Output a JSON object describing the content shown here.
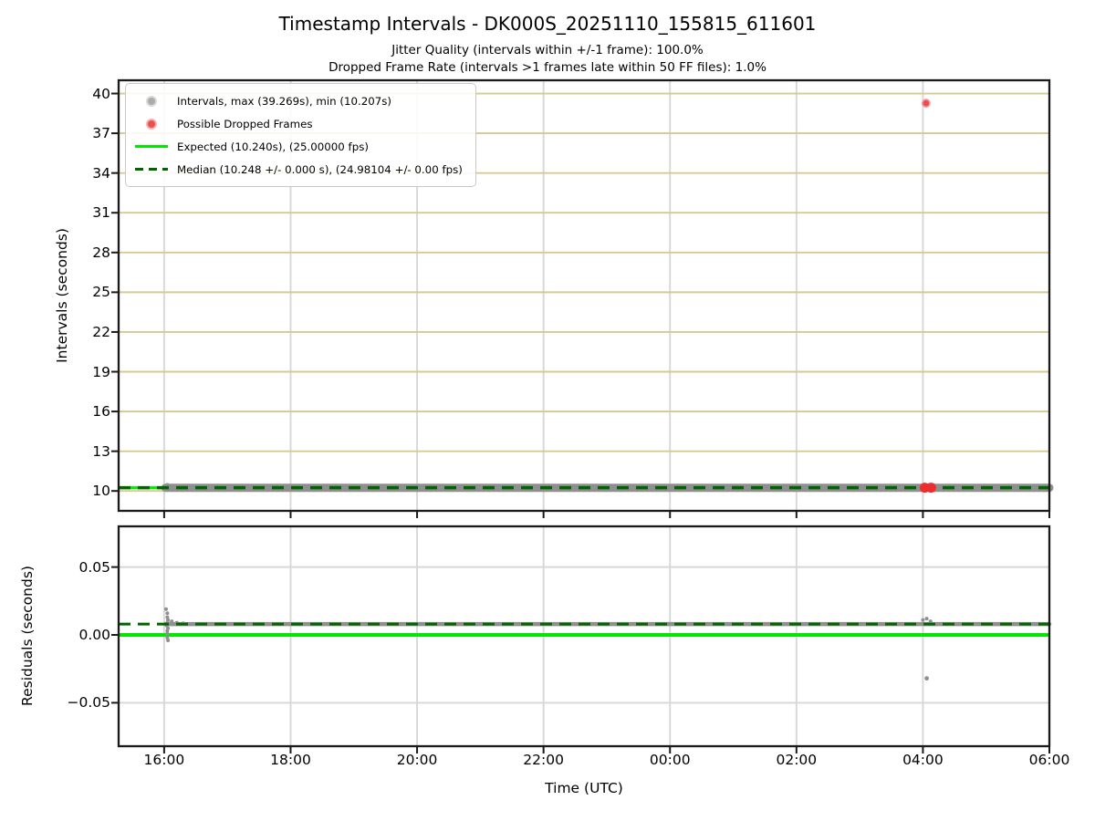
{
  "header": {
    "title": "Timestamp Intervals - DK000S_20251110_155815_611601",
    "subtitle1": "Jitter Quality (intervals within +/-1 frame): 100.0%",
    "subtitle2": "Dropped Frame Rate (intervals >1 frames late within 50 FF files): 1.0%"
  },
  "legend": {
    "items": [
      {
        "id": "legend-item-intervals",
        "marker": "dot",
        "color": "#ababab",
        "halo": "rgba(171,171,171,0.45)",
        "label": "Intervals, max (39.269s), min (10.207s)"
      },
      {
        "id": "legend-item-dropped-frames",
        "marker": "dot",
        "color": "#e85050",
        "halo": "rgba(232,80,80,0.45)",
        "label": "Possible Dropped Frames"
      },
      {
        "id": "legend-item-expected",
        "marker": "line",
        "color": "#00e700",
        "label": "Expected (10.240s), (25.00000 fps)"
      },
      {
        "id": "legend-item-median",
        "marker": "dashline",
        "color": "#006400",
        "label": "Median (10.248 +/- 0.000 s), (24.98104 +/- 0.00 fps)"
      }
    ]
  },
  "x_axis": {
    "label": "Time (UTC)",
    "xlim": [
      15.28,
      30.0
    ],
    "ticks": [
      16,
      18,
      20,
      22,
      24,
      26,
      28,
      30
    ],
    "tick_labels": [
      "16:00",
      "18:00",
      "20:00",
      "22:00",
      "00:00",
      "02:00",
      "04:00",
      "06:00"
    ]
  },
  "colors": {
    "expected": "#00e700",
    "median": "#006400",
    "points": "#8f8f8f",
    "dropped": "#ec2d2d",
    "grid_khaki": "#d5ca8f",
    "grid_gray": "#d7d7d7",
    "spine": "#1a1a1a"
  },
  "chart_data": [
    {
      "type": "scatter",
      "panel": "intervals",
      "ylabel": "Intervals (seconds)",
      "ylim": [
        8.5,
        41
      ],
      "yticks": [
        10,
        13,
        16,
        19,
        22,
        25,
        28,
        31,
        34,
        37,
        40
      ],
      "ytick_labels": [
        "10",
        "13",
        "16",
        "19",
        "22",
        "25",
        "28",
        "31",
        "34",
        "37",
        "40"
      ],
      "stats": {
        "max_s": 39.269,
        "min_s": 10.207,
        "expected_s": 10.24,
        "expected_fps": 25.0,
        "median_s": 10.248,
        "median_fps": 24.98104
      },
      "series": [
        {
          "name": "expected-line",
          "type": "hline",
          "y": 10.24,
          "color": "#00e700",
          "width": 3.2
        },
        {
          "name": "intervals-band",
          "type": "band",
          "y": 10.24,
          "x0": 16.02,
          "x1": 30.0,
          "color": "#8f8f8f",
          "width": 9
        },
        {
          "name": "intervals-start-scatter",
          "type": "scatter",
          "color": "#8f8f8f",
          "r": 2.2,
          "points": [
            [
              16.05,
              10.45
            ],
            [
              16.08,
              10.36
            ],
            [
              16.15,
              10.31
            ],
            [
              16.25,
              10.28
            ]
          ]
        },
        {
          "name": "median-line",
          "type": "hline-dashed",
          "y": 10.248,
          "color": "#006400",
          "width": 3.4
        },
        {
          "name": "dropped-frames-cluster",
          "type": "scatter",
          "color": "#ec2d2d",
          "r": 5.5,
          "points": [
            [
              28.03,
              10.245
            ],
            [
              28.13,
              10.245
            ]
          ]
        },
        {
          "name": "dropped-frame-outlier",
          "type": "scatter",
          "color": "#e85050",
          "stroke": "#f4a0a0",
          "r": 4.2,
          "points": [
            [
              28.05,
              39.269
            ]
          ]
        }
      ]
    },
    {
      "type": "scatter",
      "panel": "residuals",
      "ylabel": "Residuals (seconds)",
      "ylim": [
        -0.082,
        0.08
      ],
      "yticks": [
        0.05,
        0.0,
        -0.05
      ],
      "ytick_labels": [
        "0.05",
        "0.00",
        "−0.05"
      ],
      "series": [
        {
          "name": "expected-line",
          "type": "hline",
          "y": 0.0,
          "color": "#00e700",
          "width": 4
        },
        {
          "name": "residuals-band",
          "type": "band",
          "y": 0.008,
          "x0": 16.02,
          "x1": 30.0,
          "color": "#8f8f8f",
          "width": 4.5
        },
        {
          "name": "start-spike",
          "type": "scatter",
          "color": "#8f8f8f",
          "r": 2,
          "points": [
            [
              16.03,
              0.019
            ],
            [
              16.05,
              0.016
            ],
            [
              16.05,
              0.013
            ],
            [
              16.06,
              0.011
            ],
            [
              16.05,
              0.009
            ],
            [
              16.04,
              0.007
            ],
            [
              16.06,
              0.005
            ],
            [
              16.05,
              0.003
            ],
            [
              16.05,
              0.001
            ],
            [
              16.05,
              -0.002
            ],
            [
              16.06,
              -0.004
            ],
            [
              16.12,
              0.01
            ],
            [
              16.2,
              0.009
            ],
            [
              16.3,
              0.0085
            ]
          ]
        },
        {
          "name": "dropped-frames-residual-bump",
          "type": "scatter",
          "color": "#8f8f8f",
          "r": 2,
          "points": [
            [
              28.0,
              0.011
            ],
            [
              28.06,
              0.012
            ],
            [
              28.12,
              0.01
            ]
          ]
        },
        {
          "name": "residual-outlier",
          "type": "scatter",
          "color": "#909090",
          "r": 2.4,
          "points": [
            [
              28.06,
              -0.032
            ]
          ]
        },
        {
          "name": "median-line",
          "type": "hline-dashed",
          "y": 0.008,
          "color": "#006400",
          "width": 3
        }
      ]
    }
  ]
}
